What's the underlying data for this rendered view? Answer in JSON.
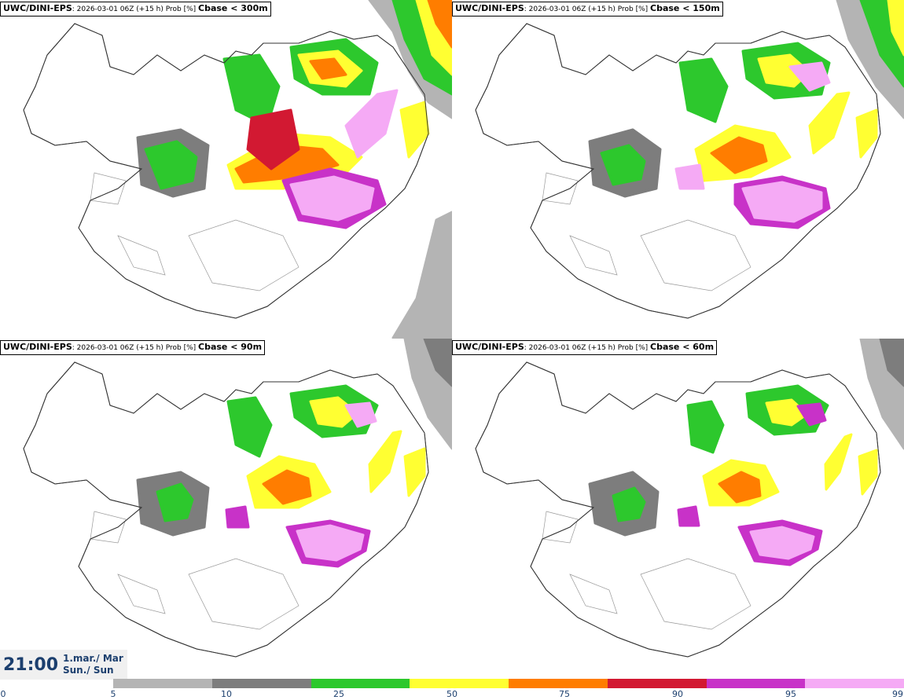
{
  "panels": [
    {
      "model": "UWC/DINI-EPS",
      "run": ": 2026-03-01 06Z (+15 h) Prob [%] ",
      "variable": "Cbase < 300m"
    },
    {
      "model": "UWC/DINI-EPS",
      "run": ": 2026-03-01 06Z (+15 h) Prob [%] ",
      "variable": "Cbase < 150m"
    },
    {
      "model": "UWC/DINI-EPS",
      "run": ": 2026-03-01 06Z (+15 h) Prob [%] ",
      "variable": "Cbase < 90m"
    },
    {
      "model": "UWC/DINI-EPS",
      "run": ": 2026-03-01 06Z (+15 h) Prob [%] ",
      "variable": "Cbase < 60m"
    }
  ],
  "valid_time": {
    "time": "21:00",
    "date": "1.mar./ Mar",
    "day": "Sun./ Sun"
  },
  "colorbar": {
    "ticks": [
      "0",
      "5",
      "10",
      "25",
      "50",
      "75",
      "90",
      "95",
      "99"
    ],
    "colors": [
      "#b4b4b4",
      "#7d7d7d",
      "#2dc82d",
      "#ffff32",
      "#ff7d00",
      "#d21932",
      "#c832c8",
      "#f5aaf5"
    ]
  }
}
